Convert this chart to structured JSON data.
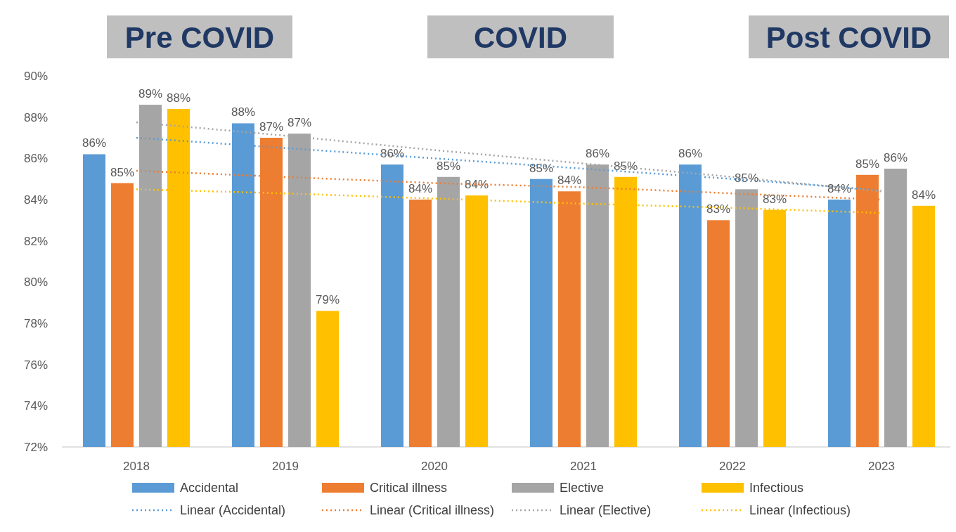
{
  "chart_data": {
    "type": "bar",
    "categories": [
      "2018",
      "2019",
      "2020",
      "2021",
      "2022",
      "2023"
    ],
    "annotations": [
      "Pre COVID",
      "COVID",
      "Post COVID"
    ],
    "ylim": [
      72,
      90
    ],
    "yticks": [
      {
        "value": 72,
        "label": "72%"
      },
      {
        "value": 74,
        "label": "74%"
      },
      {
        "value": 76,
        "label": "76%"
      },
      {
        "value": 78,
        "label": "78%"
      },
      {
        "value": 80,
        "label": "80%"
      },
      {
        "value": 82,
        "label": "82%"
      },
      {
        "value": 84,
        "label": "84%"
      },
      {
        "value": 86,
        "label": "86%"
      },
      {
        "value": 88,
        "label": "88%"
      },
      {
        "value": 90,
        "label": "90%"
      }
    ],
    "grid": false,
    "legend": "bottom",
    "series": [
      {
        "name": "Accidental",
        "color": "#5b9bd5",
        "values": [
          86.2,
          87.7,
          85.7,
          85.0,
          85.7,
          84.0
        ],
        "value_labels": [
          "86%",
          "88%",
          "86%",
          "85%",
          "86%",
          "84%"
        ]
      },
      {
        "name": "Critical illness",
        "color": "#ed7d31",
        "values": [
          84.8,
          87.0,
          84.0,
          84.4,
          83.0,
          85.2
        ],
        "value_labels": [
          "85%",
          "87%",
          "84%",
          "84%",
          "83%",
          "85%"
        ]
      },
      {
        "name": "Elective",
        "color": "#a5a5a5",
        "values": [
          88.6,
          87.2,
          85.1,
          85.7,
          84.5,
          85.5
        ],
        "value_labels": [
          "89%",
          "87%",
          "85%",
          "86%",
          "85%",
          "86%"
        ]
      },
      {
        "name": "Infectious",
        "color": "#ffc000",
        "values": [
          88.4,
          78.6,
          84.2,
          85.1,
          83.5,
          83.7
        ],
        "value_labels": [
          "88%",
          "79%",
          "84%",
          "85%",
          "83%",
          "84%"
        ]
      },
      {
        "name": "Linear (Accidental)",
        "type": "line",
        "color": "#5b9bd5",
        "values": [
          87.0,
          86.5,
          86.0,
          85.5,
          85.0,
          84.45
        ],
        "marker": "none",
        "line_style": "dotted"
      },
      {
        "name": "Linear (Critical illness)",
        "type": "line",
        "color": "#ed7d31",
        "values": [
          85.4,
          85.1,
          84.8,
          84.6,
          84.3,
          84.0
        ],
        "marker": "none",
        "line_style": "dotted"
      },
      {
        "name": "Linear (Elective)",
        "type": "line",
        "color": "#a5a5a5",
        "values": [
          87.75,
          87.1,
          86.4,
          85.75,
          85.1,
          84.4
        ],
        "marker": "none",
        "line_style": "dotted"
      },
      {
        "name": "Linear (Infectious)",
        "type": "line",
        "color": "#ffc000",
        "values": [
          84.5,
          84.3,
          84.05,
          83.8,
          83.6,
          83.35
        ],
        "marker": "none",
        "line_style": "dotted"
      }
    ]
  }
}
